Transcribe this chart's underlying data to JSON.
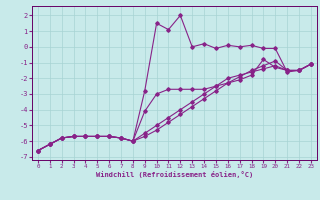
{
  "xlabel": "Windchill (Refroidissement éolien,°C)",
  "background_color": "#c8eaea",
  "grid_color": "#a8d4d4",
  "line_color": "#882288",
  "xlim": [
    -0.5,
    23.5
  ],
  "ylim": [
    -7.2,
    2.6
  ],
  "xticks": [
    0,
    1,
    2,
    3,
    4,
    5,
    6,
    7,
    8,
    9,
    10,
    11,
    12,
    13,
    14,
    15,
    16,
    17,
    18,
    19,
    20,
    21,
    22,
    23
  ],
  "yticks": [
    -7,
    -6,
    -5,
    -4,
    -3,
    -2,
    -1,
    0,
    1,
    2
  ],
  "line1_x": [
    0,
    1,
    2,
    3,
    4,
    5,
    6,
    7,
    8,
    9,
    10,
    11,
    12,
    13,
    14,
    15,
    16,
    17,
    18,
    19,
    20,
    21,
    22,
    23
  ],
  "line1_y": [
    -6.6,
    -6.2,
    -5.8,
    -5.7,
    -5.7,
    -5.7,
    -5.7,
    -5.8,
    -6.0,
    -2.8,
    1.5,
    1.1,
    2.0,
    0.0,
    0.2,
    -0.1,
    0.1,
    0.0,
    0.1,
    -0.1,
    -0.1,
    -1.6,
    -1.5,
    -1.1
  ],
  "line2_x": [
    0,
    1,
    2,
    3,
    4,
    5,
    6,
    7,
    8,
    9,
    10,
    11,
    12,
    13,
    14,
    15,
    16,
    17,
    18,
    19,
    20,
    21,
    22,
    23
  ],
  "line2_y": [
    -6.6,
    -6.2,
    -5.8,
    -5.7,
    -5.7,
    -5.7,
    -5.7,
    -5.8,
    -6.0,
    -4.1,
    -3.0,
    -2.7,
    -2.7,
    -2.7,
    -2.7,
    -2.5,
    -2.3,
    -2.1,
    -1.8,
    -0.8,
    -1.3,
    -1.5,
    -1.5,
    -1.1
  ],
  "line3_x": [
    0,
    1,
    2,
    3,
    4,
    5,
    6,
    7,
    8,
    9,
    10,
    11,
    12,
    13,
    14,
    15,
    16,
    17,
    18,
    19,
    20,
    21,
    22,
    23
  ],
  "line3_y": [
    -6.6,
    -6.2,
    -5.8,
    -5.7,
    -5.7,
    -5.7,
    -5.7,
    -5.8,
    -6.0,
    -5.5,
    -5.0,
    -4.5,
    -4.0,
    -3.5,
    -3.0,
    -2.5,
    -2.0,
    -1.8,
    -1.6,
    -1.4,
    -1.2,
    -1.5,
    -1.5,
    -1.1
  ],
  "line4_x": [
    0,
    1,
    2,
    3,
    4,
    5,
    6,
    7,
    8,
    9,
    10,
    11,
    12,
    13,
    14,
    15,
    16,
    17,
    18,
    19,
    20,
    21,
    22,
    23
  ],
  "line4_y": [
    -6.6,
    -6.2,
    -5.8,
    -5.7,
    -5.7,
    -5.7,
    -5.7,
    -5.8,
    -6.0,
    -5.7,
    -5.3,
    -4.8,
    -4.3,
    -3.8,
    -3.3,
    -2.8,
    -2.3,
    -1.9,
    -1.5,
    -1.2,
    -0.9,
    -1.5,
    -1.5,
    -1.1
  ]
}
